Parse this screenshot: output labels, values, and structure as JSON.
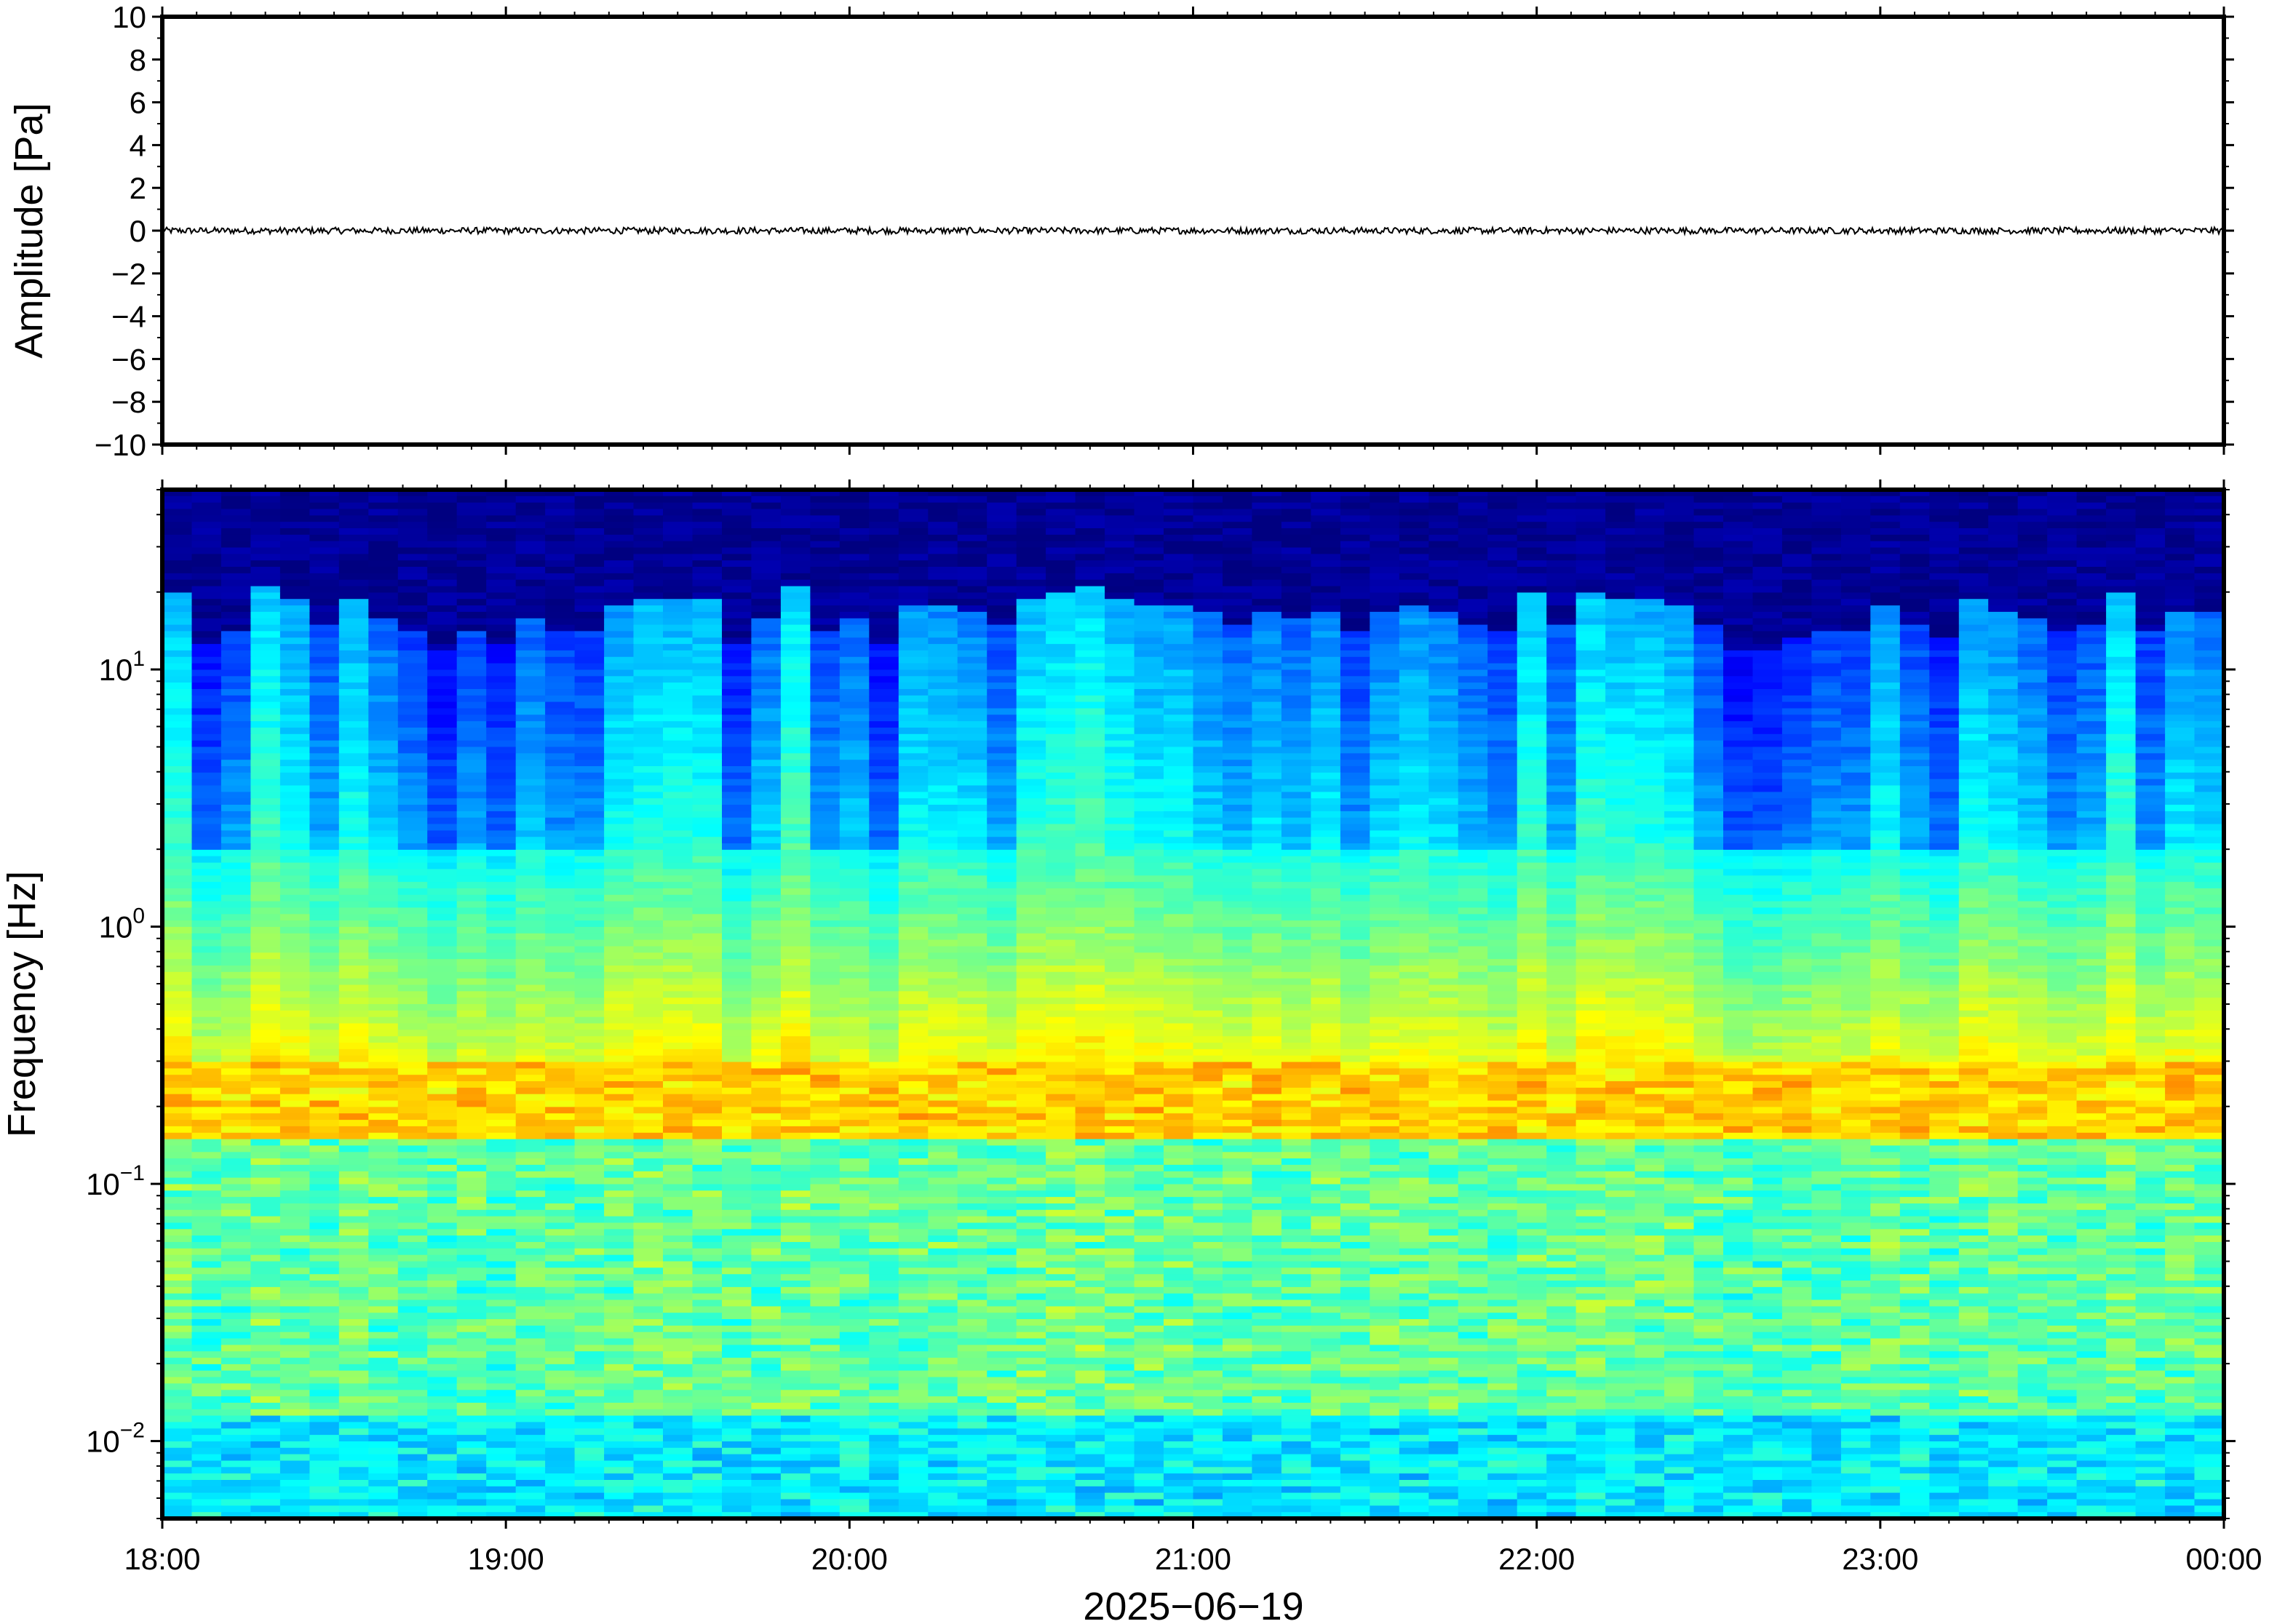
{
  "chart_data": [
    {
      "type": "line",
      "panel": "waveform",
      "title": "",
      "xlabel": "",
      "ylabel": "Amplitude [Pa]",
      "ylim": [
        -10,
        10
      ],
      "y_ticks": [
        10,
        8,
        6,
        4,
        2,
        0,
        -2,
        -4,
        -6,
        -8,
        -10
      ],
      "y_tick_labels": [
        "10",
        "8",
        "6",
        "4",
        "2",
        "0",
        "−2",
        "−4",
        "−6",
        "−8",
        "−10"
      ],
      "x_time_range": [
        "2025-06-19 18:00",
        "2025-06-20 00:00"
      ],
      "grid": false,
      "series": [
        {
          "values_approx_pa": 0.0,
          "peak_amplitude_pa_approx": 0.15
        }
      ]
    },
    {
      "type": "heatmap",
      "panel": "spectrogram",
      "title": "",
      "xlabel": "2025−06−19",
      "ylabel": "Frequency [Hz]",
      "y_scale": "log",
      "ylim": [
        0.005,
        50
      ],
      "y_major_ticks": [
        0.01,
        0.1,
        1,
        10
      ],
      "y_tick_labels": [
        {
          "base": "10",
          "exp": "−2"
        },
        {
          "base": "10",
          "exp": "−1"
        },
        {
          "base": "10",
          "exp": "0"
        },
        {
          "base": "10",
          "exp": "1"
        }
      ],
      "x_ticks": [
        "18:00",
        "19:00",
        "20:00",
        "21:00",
        "22:00",
        "23:00",
        "00:00"
      ],
      "colormap": "jet",
      "colors": {
        "low": "#00007f",
        "mid": "#4fe0e0",
        "high": "#ff9a40"
      },
      "energetic_band_hz": [
        0.15,
        0.3
      ],
      "grid": false
    }
  ]
}
